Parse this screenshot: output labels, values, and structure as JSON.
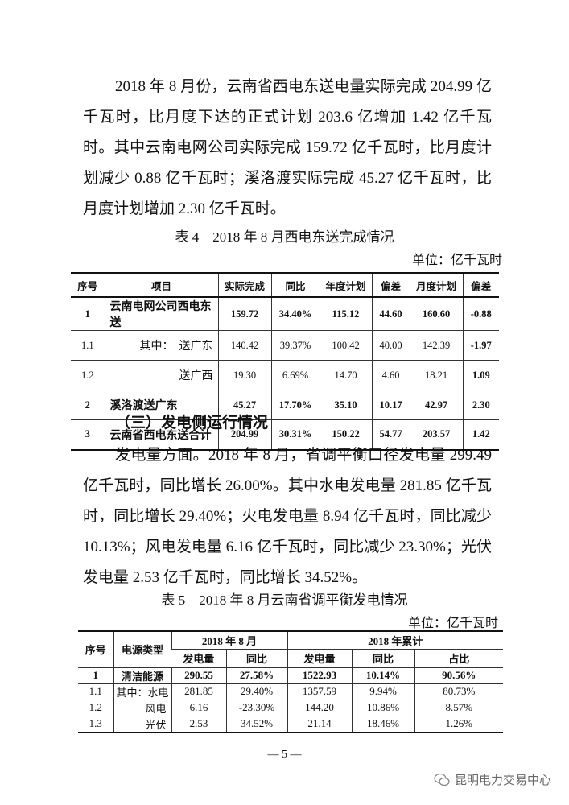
{
  "paragraph1": "2018 年 8 月份，云南省西电东送电量实际完成 204.99 亿千瓦时，比月度下达的正式计划 203.6 亿增加 1.42 亿千瓦时。其中云南电网公司实际完成 159.72 亿千瓦时，比月度计划减少 0.88 亿千瓦时；溪洛渡实际完成 45.27 亿千瓦时，比月度计划增加 2.30 亿千瓦时。",
  "table4": {
    "title": "表 4　2018 年 8 月西电东送完成情况",
    "unit": "单位：亿千瓦时",
    "headers": [
      "序号",
      "项目",
      "实际完成",
      "同比",
      "年度计划",
      "偏差",
      "月度计划",
      "偏差"
    ],
    "rows": [
      [
        "1",
        "云南电网公司西电东送",
        "159.72",
        "34.40%",
        "115.12",
        "44.60",
        "160.60",
        "-0.88"
      ],
      [
        "1.1",
        "其中：　送广东",
        "140.42",
        "39.37%",
        "100.42",
        "40.00",
        "142.39",
        "-1.97"
      ],
      [
        "1.2",
        "送广西",
        "19.30",
        "6.69%",
        "14.70",
        "4.60",
        "18.21",
        "1.09"
      ],
      [
        "2",
        "溪洛渡送广东",
        "45.27",
        "17.70%",
        "35.10",
        "10.17",
        "42.97",
        "2.30"
      ],
      [
        "3",
        "云南省西电东送合计",
        "204.99",
        "30.31%",
        "150.22",
        "54.77",
        "203.57",
        "1.42"
      ]
    ]
  },
  "section_heading": "（三）发电侧运行情况",
  "paragraph2": "发电量方面。2018 年 8 月，省调平衡口径发电量 299.49 亿千瓦时，同比增长 26.00%。其中水电发电量 281.85 亿千瓦时，同比增长 29.40%；火电发电量 8.94 亿千瓦时，同比减少 10.13%；风电发电量 6.16 亿千瓦时，同比减少 23.30%；光伏发电量 2.53 亿千瓦时，同比增长 34.52%。",
  "table5": {
    "title": "表 5　2018 年 8 月云南省调平衡发电情况",
    "unit": "单位：亿千瓦时",
    "h_seq": "序号",
    "h_type": "电源类型",
    "h_month": "2018 年 8 月",
    "h_year": "2018 年累计",
    "sub": [
      "发电量",
      "同比",
      "发电量",
      "同比",
      "占比"
    ],
    "rows": [
      [
        "1",
        "清洁能源",
        "290.55",
        "27.58%",
        "1522.93",
        "10.14%",
        "90.56%"
      ],
      [
        "1.1",
        "其中：水电",
        "281.85",
        "29.40%",
        "1357.59",
        "9.94%",
        "80.73%"
      ],
      [
        "1.2",
        "风电",
        "6.16",
        "-23.30%",
        "144.20",
        "10.86%",
        "8.57%"
      ],
      [
        "1.3",
        "光伏",
        "2.53",
        "34.52%",
        "21.14",
        "18.46%",
        "1.26%"
      ]
    ]
  },
  "page_number": "— 5 —",
  "watermark": "昆明电力交易中心"
}
